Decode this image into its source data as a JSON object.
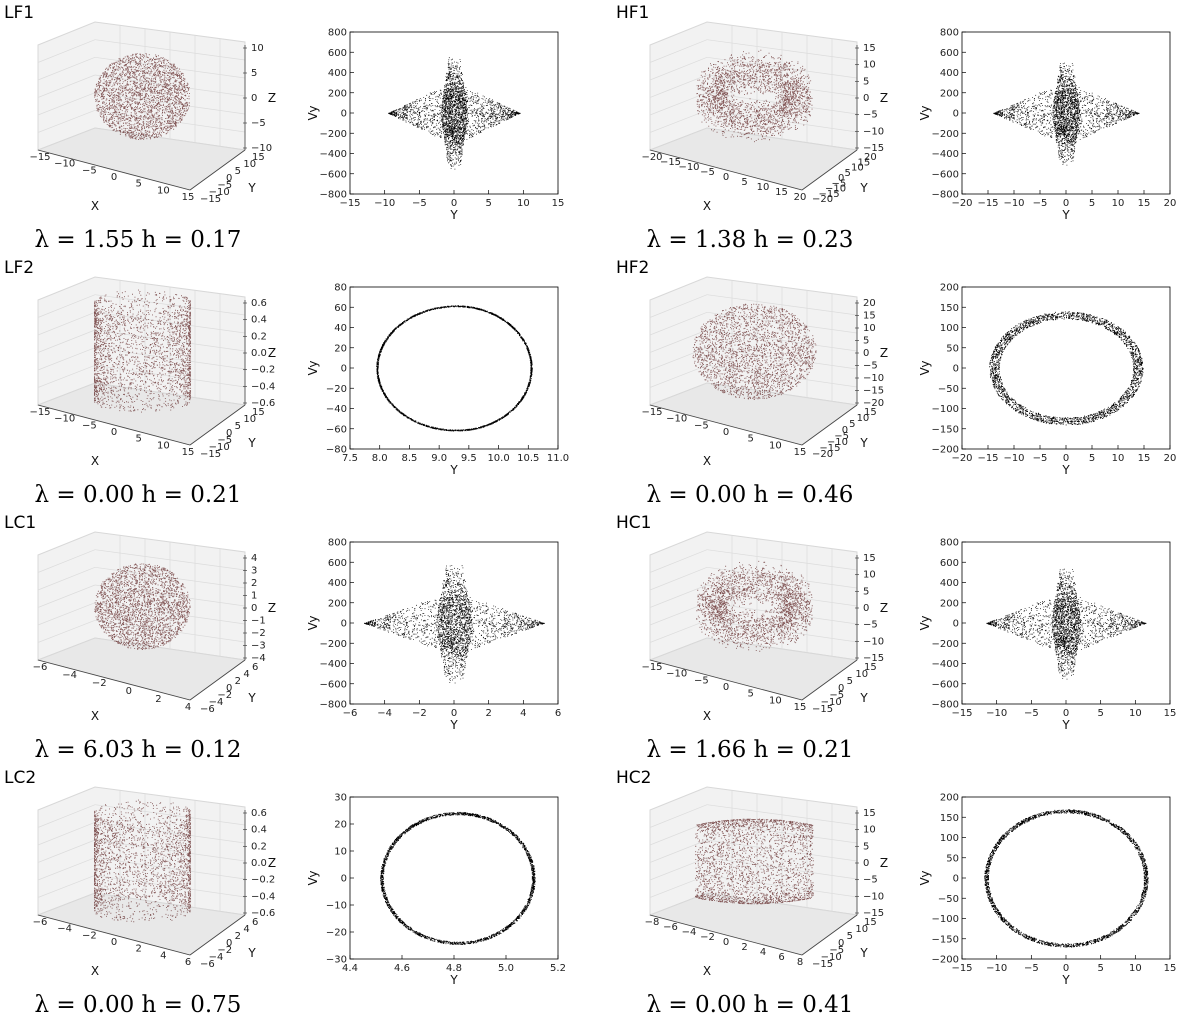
{
  "chart_data": [
    {
      "id": "LF1",
      "type": "scatter",
      "caption": "λ = 1.55 h = 0.17",
      "view3d": {
        "shape": "sphere",
        "xticks": [
          "−15",
          "−10",
          "−5",
          "0",
          "5",
          "10",
          "15"
        ],
        "yticks": [
          "15",
          "10",
          "5",
          "0",
          "−5",
          "−10",
          "−15"
        ],
        "zticks": [
          "10",
          "5",
          "0",
          "−5",
          "−10"
        ],
        "xlabel": "X",
        "ylabel": "Y",
        "zlabel": "Z"
      },
      "phase": {
        "shape": "diamond",
        "xlabel": "Y",
        "ylabel": "Vy",
        "xlim": [
          -15,
          15
        ],
        "ylim": [
          -800,
          800
        ],
        "xticks": [
          "−15",
          "−10",
          "−5",
          "0",
          "5",
          "10",
          "15"
        ],
        "yticks": [
          "800",
          "600",
          "400",
          "200",
          "0",
          "−200",
          "−400",
          "−600",
          "−800"
        ],
        "core_halfwidth": 2,
        "lobe_halfwidth": 9.5,
        "vy_peak": 560
      }
    },
    {
      "id": "HF1",
      "type": "scatter",
      "caption": "λ = 1.38 h = 0.23",
      "view3d": {
        "shape": "torus",
        "xticks": [
          "−20",
          "−15",
          "−10",
          "−5",
          "0",
          "5",
          "10",
          "15",
          "20"
        ],
        "yticks": [
          "20",
          "15",
          "10",
          "5",
          "0",
          "−5",
          "−10",
          "−15",
          "−20"
        ],
        "zticks": [
          "15",
          "10",
          "5",
          "0",
          "−5",
          "−10",
          "−15"
        ],
        "xlabel": "X",
        "ylabel": "Y",
        "zlabel": "Z"
      },
      "phase": {
        "shape": "diamond",
        "xlabel": "Y",
        "ylabel": "Vy",
        "xlim": [
          -20,
          20
        ],
        "ylim": [
          -800,
          800
        ],
        "xticks": [
          "−20",
          "−15",
          "−10",
          "−5",
          "0",
          "5",
          "10",
          "15",
          "20"
        ],
        "yticks": [
          "800",
          "600",
          "400",
          "200",
          "0",
          "−200",
          "−400",
          "−600",
          "−800"
        ],
        "core_halfwidth": 2.8,
        "lobe_halfwidth": 14,
        "vy_peak": 520
      }
    },
    {
      "id": "LF2",
      "type": "scatter",
      "caption": "λ = 0.00 h = 0.21",
      "view3d": {
        "shape": "cylinder",
        "xticks": [
          "−15",
          "−10",
          "−5",
          "0",
          "5",
          "10",
          "15"
        ],
        "yticks": [
          "15",
          "10",
          "5",
          "0",
          "−5",
          "−10",
          "−15"
        ],
        "zticks": [
          "0.6",
          "0.4",
          "0.2",
          "0.0",
          "−0.2",
          "−0.4",
          "−0.6"
        ],
        "xlabel": "X",
        "ylabel": "Y",
        "zlabel": "Z"
      },
      "phase": {
        "shape": "ring",
        "xlabel": "Y",
        "ylabel": "Vy",
        "xlim": [
          7.5,
          11.0
        ],
        "ylim": [
          -80,
          80
        ],
        "xticks": [
          "7.5",
          "8.0",
          "8.5",
          "9.0",
          "9.5",
          "10.0",
          "10.5",
          "11.0"
        ],
        "yticks": [
          "80",
          "60",
          "40",
          "20",
          "0",
          "−20",
          "−40",
          "−60",
          "−80"
        ],
        "cx": 9.2,
        "ry": 62,
        "width": 0.02,
        "xmin": 7.98,
        "xmax": 10.6,
        "skew": 0.6
      }
    },
    {
      "id": "HF2",
      "type": "scatter",
      "caption": "λ = 0.00 h = 0.46",
      "view3d": {
        "shape": "ellipsoid",
        "xticks": [
          "−15",
          "−10",
          "−5",
          "0",
          "5",
          "10",
          "15"
        ],
        "yticks": [
          "15",
          "10",
          "5",
          "0",
          "−5",
          "−10",
          "−15",
          "−20"
        ],
        "zticks": [
          "20",
          "15",
          "10",
          "5",
          "0",
          "−5",
          "−10",
          "−15",
          "−20"
        ],
        "xlabel": "X",
        "ylabel": "Y",
        "zlabel": "Z"
      },
      "phase": {
        "shape": "ring",
        "xlabel": "Y",
        "ylabel": "Vy",
        "xlim": [
          -20,
          20
        ],
        "ylim": [
          -200,
          200
        ],
        "xticks": [
          "−20",
          "−15",
          "−10",
          "−5",
          "0",
          "5",
          "10",
          "15",
          "20"
        ],
        "yticks": [
          "200",
          "150",
          "100",
          "50",
          "0",
          "−50",
          "−100",
          "−150",
          "−200"
        ],
        "cx": 0,
        "ry": 140,
        "width": 0.13,
        "xmin": -14.8,
        "xmax": 14.8,
        "skew": 0
      }
    },
    {
      "id": "LC1",
      "type": "scatter",
      "caption": "λ = 6.03 h = 0.12",
      "view3d": {
        "shape": "sphere",
        "xticks": [
          "−6",
          "−4",
          "−2",
          "0",
          "2",
          "4"
        ],
        "yticks": [
          "6",
          "4",
          "2",
          "0",
          "−2",
          "−4",
          "−6"
        ],
        "zticks": [
          "4",
          "3",
          "2",
          "1",
          "0",
          "−1",
          "−2",
          "−3",
          "−4"
        ],
        "xlabel": "X",
        "ylabel": "Y",
        "zlabel": "Z"
      },
      "phase": {
        "shape": "diamond",
        "xlabel": "Y",
        "ylabel": "Vy",
        "xlim": [
          -6,
          6
        ],
        "ylim": [
          -800,
          800
        ],
        "xticks": [
          "−6",
          "−4",
          "−2",
          "0",
          "2",
          "4",
          "6"
        ],
        "yticks": [
          "800",
          "600",
          "400",
          "200",
          "0",
          "−200",
          "−400",
          "−600",
          "−800"
        ],
        "core_halfwidth": 1.1,
        "lobe_halfwidth": 5.2,
        "vy_peak": 600
      }
    },
    {
      "id": "HC1",
      "type": "scatter",
      "caption": "λ = 1.66 h = 0.21",
      "view3d": {
        "shape": "torus",
        "xticks": [
          "−15",
          "−10",
          "−5",
          "0",
          "5",
          "10",
          "15"
        ],
        "yticks": [
          "15",
          "10",
          "5",
          "0",
          "−5",
          "−10",
          "−15"
        ],
        "zticks": [
          "15",
          "10",
          "5",
          "0",
          "−5",
          "−10",
          "−15"
        ],
        "xlabel": "X",
        "ylabel": "Y",
        "zlabel": "Z"
      },
      "phase": {
        "shape": "diamond",
        "xlabel": "Y",
        "ylabel": "Vy",
        "xlim": [
          -15,
          15
        ],
        "ylim": [
          -800,
          800
        ],
        "xticks": [
          "−15",
          "−10",
          "−5",
          "0",
          "5",
          "10",
          "15"
        ],
        "yticks": [
          "800",
          "600",
          "400",
          "200",
          "0",
          "−200",
          "−400",
          "−600",
          "−800"
        ],
        "core_halfwidth": 2.2,
        "lobe_halfwidth": 11.5,
        "vy_peak": 560
      }
    },
    {
      "id": "LC2",
      "type": "scatter",
      "caption": "λ = 0.00 h = 0.75",
      "view3d": {
        "shape": "cylinder",
        "xticks": [
          "−6",
          "−4",
          "−2",
          "0",
          "2",
          "4",
          "6"
        ],
        "yticks": [
          "6",
          "4",
          "2",
          "0",
          "−2",
          "−4",
          "−6"
        ],
        "zticks": [
          "0.6",
          "0.4",
          "0.2",
          "0.0",
          "−0.2",
          "−0.4",
          "−0.6"
        ],
        "xlabel": "X",
        "ylabel": "Y",
        "zlabel": "Z"
      },
      "phase": {
        "shape": "ring",
        "xlabel": "Y",
        "ylabel": "Vy",
        "xlim": [
          4.4,
          5.3
        ],
        "ylim": [
          -30,
          30
        ],
        "xticks": [
          "4.4",
          "4.6",
          "4.8",
          "5.0",
          "5.2"
        ],
        "yticks": [
          "30",
          "20",
          "10",
          "0",
          "−10",
          "−20",
          "−30"
        ],
        "cx": 4.865,
        "ry": 24.5,
        "width": 0.04,
        "xmin": 4.53,
        "xmax": 5.2,
        "skew": 0
      }
    },
    {
      "id": "HC2",
      "type": "scatter",
      "caption": "λ = 0.00 h = 0.41",
      "view3d": {
        "shape": "barrel",
        "xticks": [
          "−8",
          "−6",
          "−4",
          "−2",
          "0",
          "2",
          "4",
          "6",
          "8"
        ],
        "yticks": [
          "15",
          "10",
          "5",
          "0",
          "−5",
          "−10",
          "−15"
        ],
        "zticks": [
          "15",
          "10",
          "5",
          "0",
          "−5",
          "−10",
          "−15"
        ],
        "xlabel": "X",
        "ylabel": "Y",
        "zlabel": "Z"
      },
      "phase": {
        "shape": "ring",
        "xlabel": "Y",
        "ylabel": "Vy",
        "xlim": [
          -15,
          15
        ],
        "ylim": [
          -200,
          200
        ],
        "xticks": [
          "−15",
          "−10",
          "−5",
          "0",
          "5",
          "10",
          "15"
        ],
        "yticks": [
          "200",
          "150",
          "100",
          "50",
          "0",
          "−50",
          "−100",
          "−150",
          "−200"
        ],
        "cx": 0,
        "ry": 170,
        "width": 0.05,
        "xmin": -11.8,
        "xmax": 11.8,
        "skew": 0
      }
    }
  ]
}
